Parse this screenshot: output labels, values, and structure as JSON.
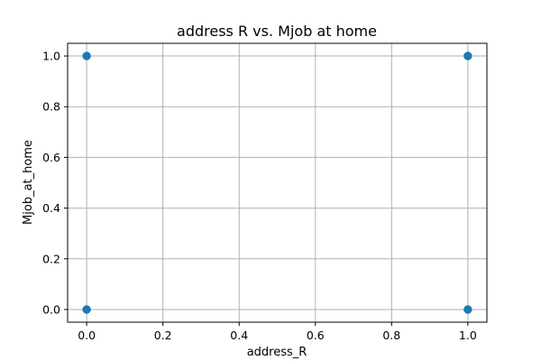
{
  "chart_data": {
    "type": "scatter",
    "title": "address R vs. Mjob at home",
    "xlabel": "address_R",
    "ylabel": "Mjob_at_home",
    "xlim": [
      -0.05,
      1.05
    ],
    "ylim": [
      -0.05,
      1.05
    ],
    "xticks": [
      0.0,
      0.2,
      0.4,
      0.6,
      0.8,
      1.0
    ],
    "yticks": [
      0.0,
      0.2,
      0.4,
      0.6,
      0.8,
      1.0
    ],
    "xtick_labels": [
      "0.0",
      "0.2",
      "0.4",
      "0.6",
      "0.8",
      "1.0"
    ],
    "ytick_labels": [
      "0.0",
      "0.2",
      "0.4",
      "0.6",
      "0.8",
      "1.0"
    ],
    "grid": true,
    "point_color": "#1f77b4",
    "points": [
      {
        "x": 0,
        "y": 1
      },
      {
        "x": 1,
        "y": 1
      },
      {
        "x": 0,
        "y": 0
      },
      {
        "x": 1,
        "y": 0
      }
    ]
  }
}
